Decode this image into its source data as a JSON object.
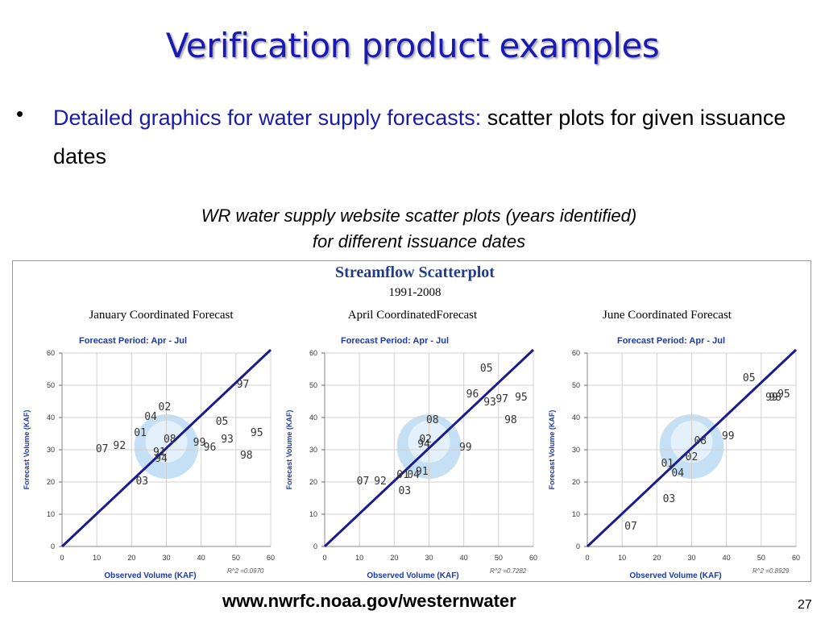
{
  "slide": {
    "title": "Verification product examples",
    "bullet_symbol": "•",
    "bullet_highlight": "Detailed graphics for water supply forecasts:",
    "bullet_rest": " scatter plots for given issuance dates",
    "caption_line1": "WR water supply website scatter plots (years identified)",
    "caption_line2": "for different issuance dates",
    "footer_url": "www.nwrfc.noaa.gov/westernwater",
    "page_number": "27"
  },
  "panel": {
    "title": "Streamflow Scatterplot",
    "subtitle": "1991-2008"
  },
  "colors": {
    "title": "#1a1ab0",
    "axis_title": "#1b3aa8",
    "line": "#1b1b8c",
    "grid": "#d0d0d0",
    "points": "#333333"
  },
  "chart_data": [
    {
      "type": "scatter",
      "title": "January Coordinated Forecast",
      "subtitle": "Forecast Period: Apr - Jul",
      "xlabel": "Observed Volume (KAF)",
      "ylabel": "Forecast Volume (KAF)",
      "xlim": [
        0,
        60
      ],
      "ylim": [
        0,
        60
      ],
      "xticks": [
        0,
        10,
        20,
        30,
        40,
        50,
        60
      ],
      "yticks": [
        0,
        10,
        20,
        30,
        40,
        50,
        60
      ],
      "grid": true,
      "r2": "R^2 =0.0970",
      "line": [
        [
          0,
          0
        ],
        [
          60,
          61
        ]
      ],
      "points": [
        {
          "label": "97",
          "x": 52,
          "y": 50.5
        },
        {
          "label": "02",
          "x": 29.5,
          "y": 43.5
        },
        {
          "label": "04",
          "x": 25.5,
          "y": 40.5
        },
        {
          "label": "05",
          "x": 46,
          "y": 39
        },
        {
          "label": "95",
          "x": 56,
          "y": 35.5
        },
        {
          "label": "01",
          "x": 22.5,
          "y": 35.5
        },
        {
          "label": "08",
          "x": 31,
          "y": 33.5
        },
        {
          "label": "93",
          "x": 47.5,
          "y": 33.5
        },
        {
          "label": "99",
          "x": 39.5,
          "y": 32.5
        },
        {
          "label": "07",
          "x": 11.5,
          "y": 30.5
        },
        {
          "label": "92",
          "x": 16.5,
          "y": 31.5
        },
        {
          "label": "96",
          "x": 42.5,
          "y": 31
        },
        {
          "label": "91",
          "x": 28,
          "y": 29.5
        },
        {
          "label": "94",
          "x": 28.5,
          "y": 27.5
        },
        {
          "label": "98",
          "x": 53,
          "y": 28.5
        },
        {
          "label": "03",
          "x": 23,
          "y": 20.5
        }
      ]
    },
    {
      "type": "scatter",
      "title": "April CoordinatedForecast",
      "subtitle": "Forecast Period: Apr - Jul",
      "xlabel": "Observed Volume (KAF)",
      "ylabel": "Forecast Volume (KAF)",
      "xlim": [
        0,
        60
      ],
      "ylim": [
        0,
        60
      ],
      "xticks": [
        0,
        10,
        20,
        30,
        40,
        50,
        60
      ],
      "yticks": [
        0,
        10,
        20,
        30,
        40,
        50,
        60
      ],
      "grid": true,
      "r2": "R^2 =0.7282",
      "line": [
        [
          0,
          0
        ],
        [
          60,
          61
        ]
      ],
      "points": [
        {
          "label": "05",
          "x": 46.5,
          "y": 55.5
        },
        {
          "label": "96",
          "x": 42.5,
          "y": 47.5
        },
        {
          "label": "97",
          "x": 51,
          "y": 46
        },
        {
          "label": "95",
          "x": 56.5,
          "y": 46.5
        },
        {
          "label": "93",
          "x": 47.5,
          "y": 45
        },
        {
          "label": "08",
          "x": 31,
          "y": 39.5
        },
        {
          "label": "98",
          "x": 53.5,
          "y": 39.5
        },
        {
          "label": "02",
          "x": 29,
          "y": 33.5
        },
        {
          "label": "94",
          "x": 28.5,
          "y": 32
        },
        {
          "label": "99",
          "x": 40.5,
          "y": 31
        },
        {
          "label": "01",
          "x": 22.5,
          "y": 22.5
        },
        {
          "label": "04",
          "x": 25.5,
          "y": 22.5
        },
        {
          "label": "91",
          "x": 28,
          "y": 23.5
        },
        {
          "label": "07",
          "x": 11,
          "y": 20.5
        },
        {
          "label": "92",
          "x": 16,
          "y": 20.5
        },
        {
          "label": "03",
          "x": 23,
          "y": 17.5
        }
      ]
    },
    {
      "type": "scatter",
      "title": "June Coordinated Forecast",
      "subtitle": "Forecast Period: Apr - Jul",
      "xlabel": "Observed Volume (KAF)",
      "ylabel": "Forecast Volume (KAF)",
      "xlim": [
        0,
        60
      ],
      "ylim": [
        0,
        60
      ],
      "xticks": [
        0,
        10,
        20,
        30,
        40,
        50,
        60
      ],
      "yticks": [
        0,
        10,
        20,
        30,
        40,
        50,
        60
      ],
      "grid": true,
      "r2": "R^2 =0.8929",
      "line": [
        [
          0,
          0
        ],
        [
          60,
          61
        ]
      ],
      "points": [
        {
          "label": "05",
          "x": 46.5,
          "y": 52.5
        },
        {
          "label": "95",
          "x": 56.5,
          "y": 47.5
        },
        {
          "label": "99",
          "x": 53,
          "y": 46.5
        },
        {
          "label": "98",
          "x": 54,
          "y": 46.5
        },
        {
          "label": "99",
          "x": 40.5,
          "y": 34.5
        },
        {
          "label": "08",
          "x": 32.5,
          "y": 33
        },
        {
          "label": "02",
          "x": 30,
          "y": 28
        },
        {
          "label": "01",
          "x": 23,
          "y": 26
        },
        {
          "label": "04",
          "x": 26,
          "y": 23
        },
        {
          "label": "03",
          "x": 23.5,
          "y": 15
        },
        {
          "label": "07",
          "x": 12.5,
          "y": 6.5
        }
      ]
    }
  ]
}
